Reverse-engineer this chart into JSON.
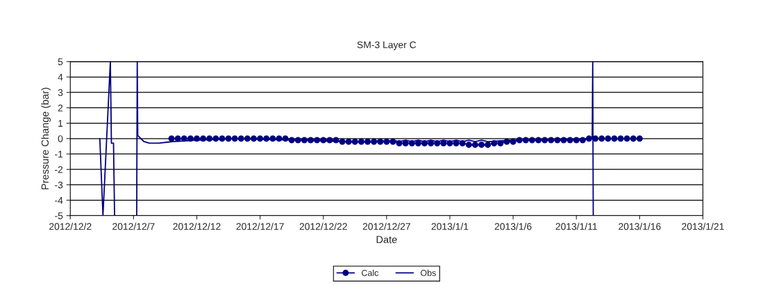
{
  "chart_data": {
    "type": "line",
    "title": "SM-3 Layer C",
    "xlabel": "Date",
    "ylabel": "Pressure Change (bar)",
    "xlim": [
      "2012-12-02",
      "2013-01-21"
    ],
    "xticks": [
      {
        "value": "2012-12-02",
        "label": "2012/12/2"
      },
      {
        "value": "2012-12-07",
        "label": "2012/12/7"
      },
      {
        "value": "2012-12-12",
        "label": "2012/12/12"
      },
      {
        "value": "2012-12-17",
        "label": "2012/12/17"
      },
      {
        "value": "2012-12-22",
        "label": "2012/12/22"
      },
      {
        "value": "2012-12-27",
        "label": "2012/12/27"
      },
      {
        "value": "2013-01-01",
        "label": "2013/1/1"
      },
      {
        "value": "2013-01-06",
        "label": "2013/1/6"
      },
      {
        "value": "2013-01-11",
        "label": "2013/1/11"
      },
      {
        "value": "2013-01-16",
        "label": "2013/1/16"
      },
      {
        "value": "2013-01-21",
        "label": "2013/1/21"
      }
    ],
    "ylim": [
      -5,
      5
    ],
    "yticks": [
      -5,
      -4,
      -3,
      -2,
      -1,
      0,
      1,
      2,
      3,
      4,
      5
    ],
    "grid": "y",
    "legend": "bottom",
    "series": [
      {
        "name": "Calc",
        "color": "#000080",
        "marker": "circle",
        "x": [
          "2012-12-10T00:00",
          "2012-12-10T12:00",
          "2012-12-11T00:00",
          "2012-12-11T12:00",
          "2012-12-12T00:00",
          "2012-12-12T12:00",
          "2012-12-13T00:00",
          "2012-12-13T12:00",
          "2012-12-14T00:00",
          "2012-12-14T12:00",
          "2012-12-15T00:00",
          "2012-12-15T12:00",
          "2012-12-16T00:00",
          "2012-12-16T12:00",
          "2012-12-17T00:00",
          "2012-12-17T12:00",
          "2012-12-18T00:00",
          "2012-12-18T12:00",
          "2012-12-19T00:00",
          "2012-12-19T12:00",
          "2012-12-20T00:00",
          "2012-12-20T12:00",
          "2012-12-21T00:00",
          "2012-12-21T12:00",
          "2012-12-22T00:00",
          "2012-12-22T12:00",
          "2012-12-23T00:00",
          "2012-12-23T12:00",
          "2012-12-24T00:00",
          "2012-12-24T12:00",
          "2012-12-25T00:00",
          "2012-12-25T12:00",
          "2012-12-26T00:00",
          "2012-12-26T12:00",
          "2012-12-27T00:00",
          "2012-12-27T12:00",
          "2012-12-28T00:00",
          "2012-12-28T12:00",
          "2012-12-29T00:00",
          "2012-12-29T12:00",
          "2012-12-30T00:00",
          "2012-12-30T12:00",
          "2012-12-31T00:00",
          "2012-12-31T12:00",
          "2013-01-01T00:00",
          "2013-01-01T12:00",
          "2013-01-02T00:00",
          "2013-01-02T12:00",
          "2013-01-03T00:00",
          "2013-01-03T12:00",
          "2013-01-04T00:00",
          "2013-01-04T12:00",
          "2013-01-05T00:00",
          "2013-01-05T12:00",
          "2013-01-06T00:00",
          "2013-01-06T12:00",
          "2013-01-07T00:00",
          "2013-01-07T12:00",
          "2013-01-08T00:00",
          "2013-01-08T12:00",
          "2013-01-09T00:00",
          "2013-01-09T12:00",
          "2013-01-10T00:00",
          "2013-01-10T12:00",
          "2013-01-11T00:00",
          "2013-01-11T12:00",
          "2013-01-12T00:00",
          "2013-01-12T12:00",
          "2013-01-13T00:00",
          "2013-01-13T12:00",
          "2013-01-14T00:00",
          "2013-01-14T12:00",
          "2013-01-15T00:00",
          "2013-01-15T12:00",
          "2013-01-16T00:00"
        ],
        "values": [
          0,
          0,
          0,
          0,
          0,
          0,
          0,
          0,
          0,
          0,
          0,
          0,
          0,
          0,
          0,
          0,
          0,
          0,
          0,
          -0.1,
          -0.1,
          -0.1,
          -0.1,
          -0.1,
          -0.1,
          -0.1,
          -0.1,
          -0.2,
          -0.2,
          -0.2,
          -0.2,
          -0.2,
          -0.2,
          -0.2,
          -0.2,
          -0.2,
          -0.3,
          -0.3,
          -0.3,
          -0.3,
          -0.3,
          -0.3,
          -0.3,
          -0.3,
          -0.3,
          -0.3,
          -0.3,
          -0.4,
          -0.4,
          -0.4,
          -0.4,
          -0.3,
          -0.3,
          -0.2,
          -0.2,
          -0.1,
          -0.1,
          -0.1,
          -0.1,
          -0.1,
          -0.1,
          -0.1,
          -0.1,
          -0.1,
          -0.1,
          -0.1,
          0,
          0,
          0,
          0,
          0,
          0,
          0,
          0,
          0
        ]
      },
      {
        "name": "Obs",
        "color": "#000080",
        "marker": "none",
        "x": [
          "2012-12-04T08:00",
          "2012-12-04T14:00",
          "2012-12-05T04:00",
          "2012-12-05T06:00",
          "2012-12-05T10:00",
          "2012-12-05T12:00",
          "2012-12-07T06:00",
          "2012-12-07T07:00",
          "2012-12-07T08:00",
          "2012-12-07T20:00",
          "2012-12-08T06:00",
          "2012-12-09T00:00",
          "2012-12-10T00:00",
          "2012-12-12T00:00",
          "2012-12-15T00:00",
          "2012-12-20T00:00",
          "2012-12-24T00:00",
          "2012-12-26T00:00",
          "2012-12-26T12:00",
          "2012-12-27T00:00",
          "2012-12-27T12:00",
          "2012-12-28T00:00",
          "2012-12-28T12:00",
          "2012-12-29T00:00",
          "2012-12-29T12:00",
          "2012-12-30T00:00",
          "2012-12-30T12:00",
          "2012-12-31T00:00",
          "2012-12-31T12:00",
          "2013-01-01T00:00",
          "2013-01-01T12:00",
          "2013-01-02T00:00",
          "2013-01-02T12:00",
          "2013-01-03T00:00",
          "2013-01-03T12:00",
          "2013-01-04T00:00",
          "2013-01-06T00:00",
          "2013-01-09T00:00",
          "2013-01-12T06:00",
          "2013-01-12T07:00",
          "2013-01-12T08:00"
        ],
        "values": [
          0,
          -5,
          5,
          -0.3,
          -0.3,
          -5,
          -5,
          5,
          0.2,
          -0.2,
          -0.3,
          -0.3,
          -0.2,
          -0.1,
          0,
          -0.1,
          -0.2,
          -0.2,
          -0.1,
          -0.2,
          -0.1,
          -0.2,
          -0.1,
          -0.2,
          -0.1,
          -0.2,
          -0.1,
          -0.2,
          -0.1,
          -0.2,
          -0.1,
          -0.2,
          -0.1,
          -0.2,
          -0.1,
          -0.2,
          -0.1,
          -0.1,
          0,
          5,
          -5
        ]
      }
    ]
  }
}
